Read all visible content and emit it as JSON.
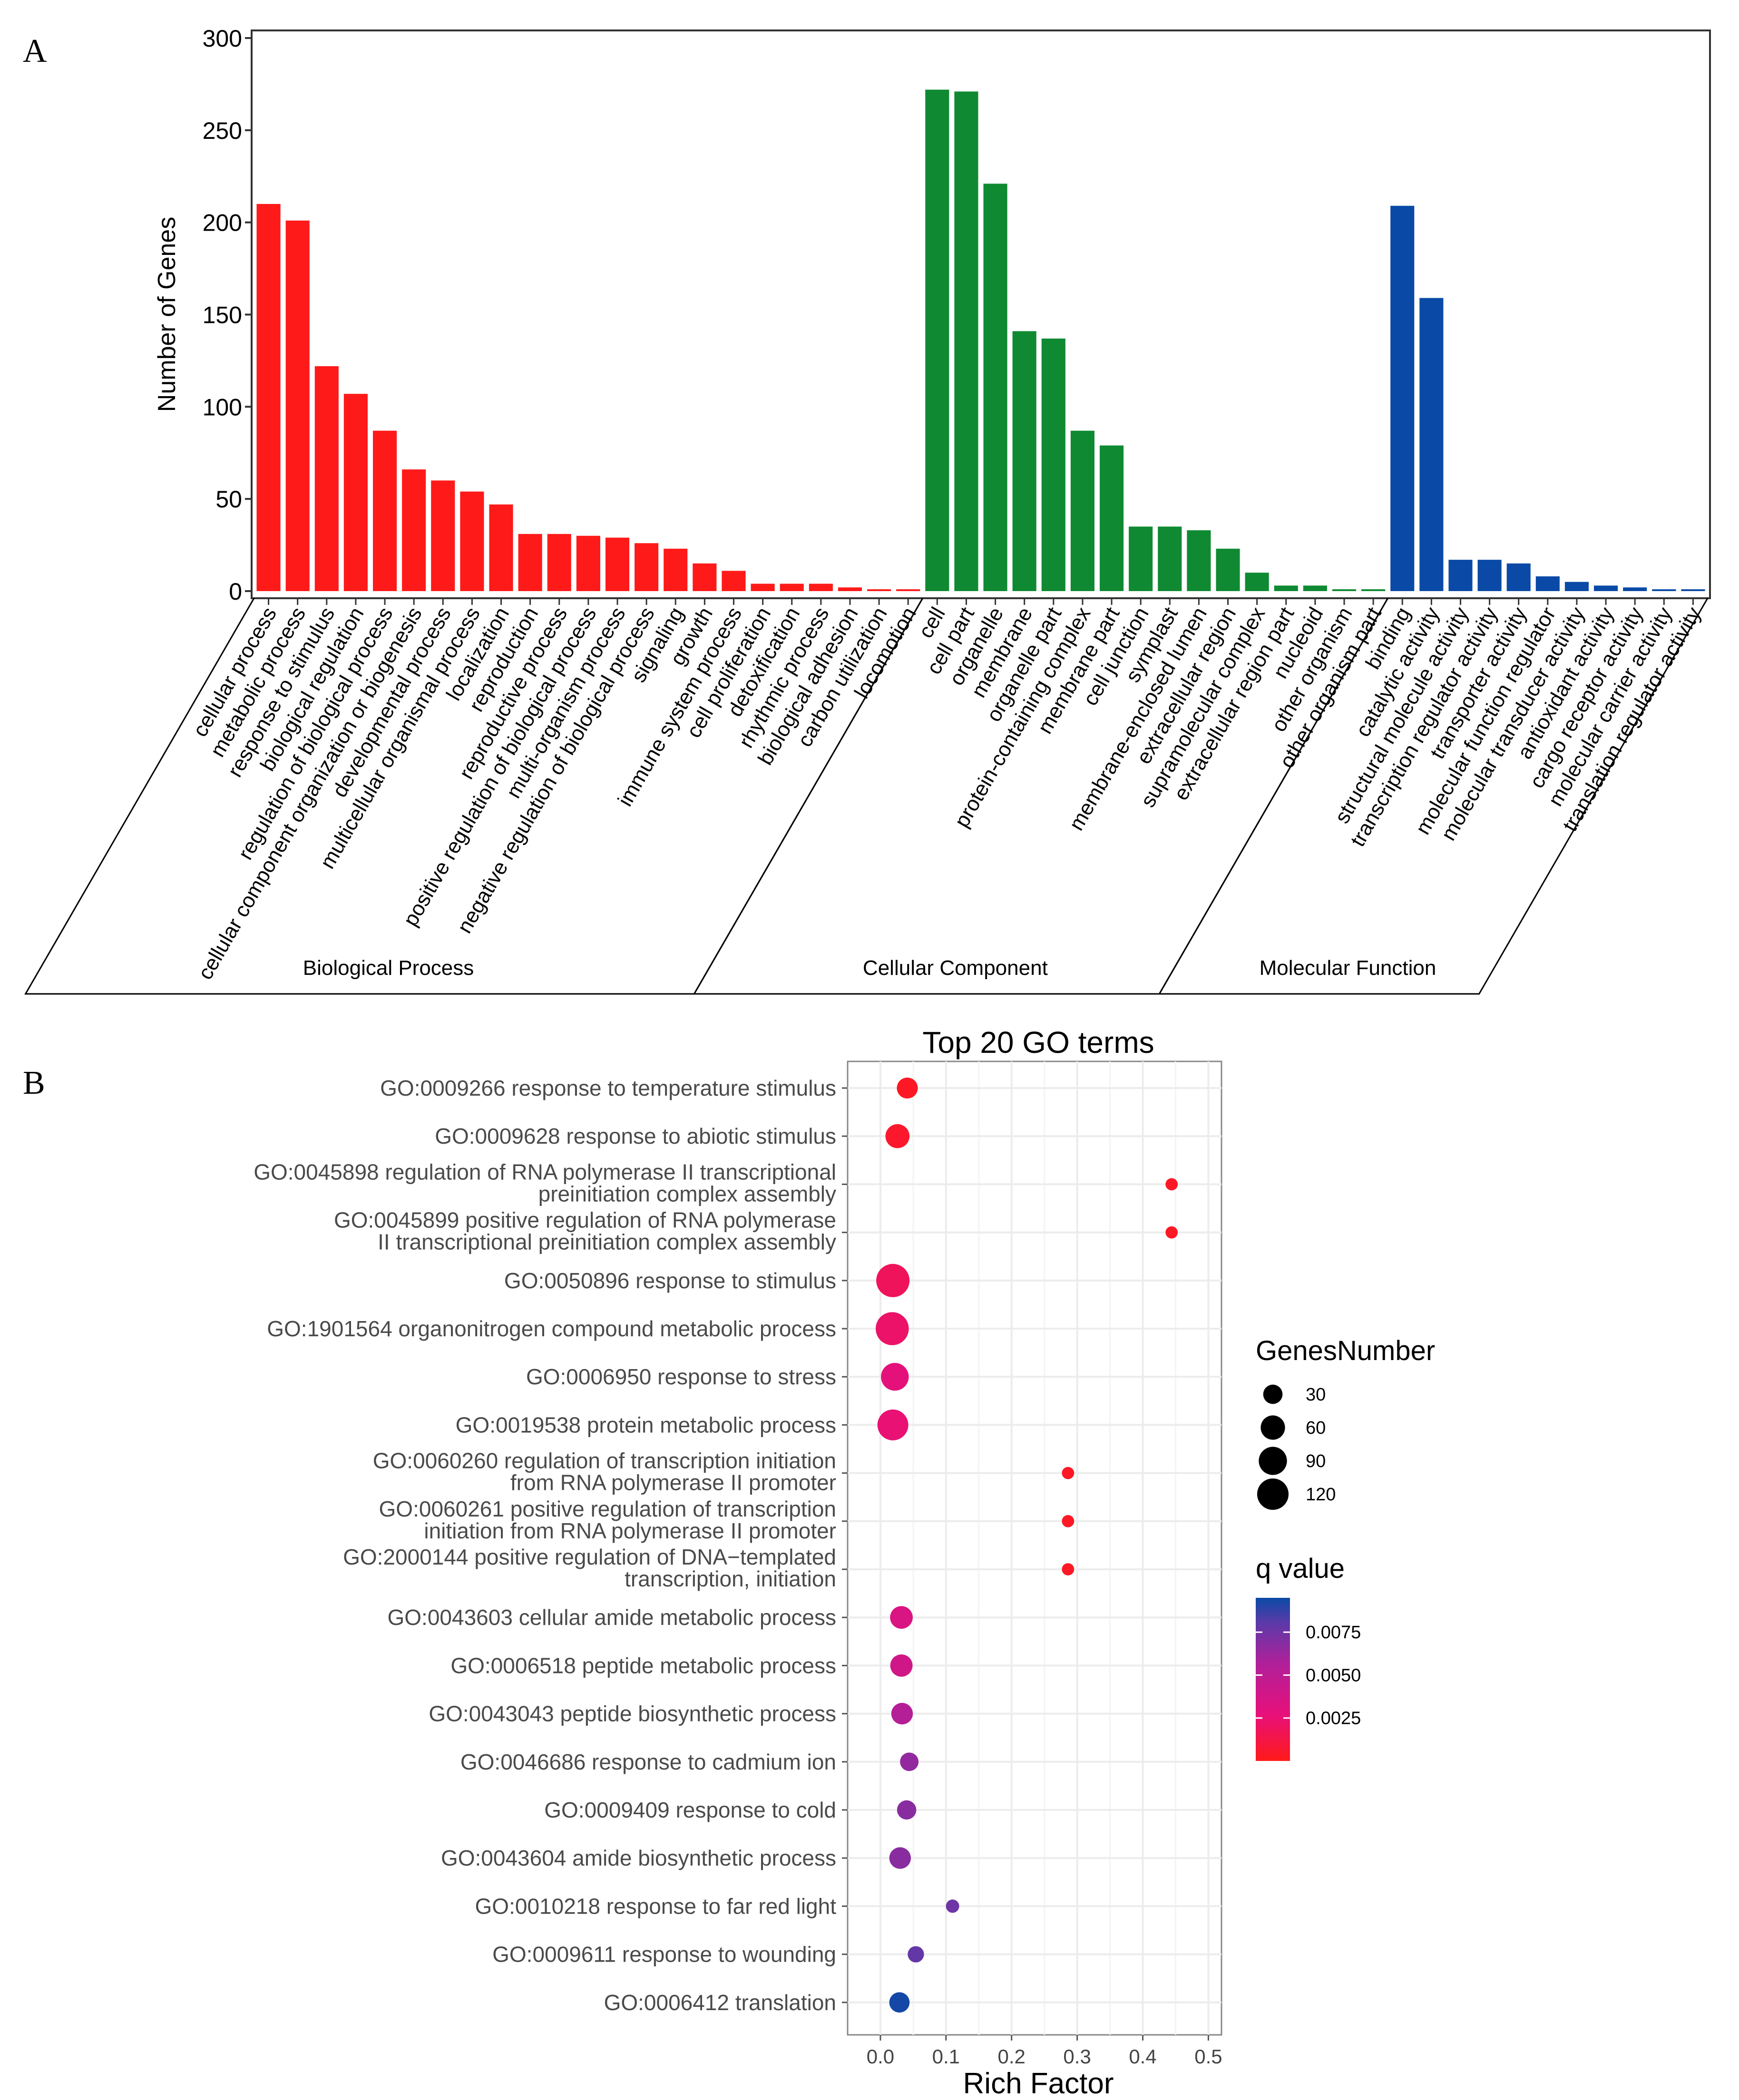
{
  "chart_data": [
    {
      "type": "bar",
      "panel_label": "A",
      "ylabel": "Number of Genes",
      "ylim": [
        0,
        300
      ],
      "yticks": [
        0,
        50,
        100,
        150,
        200,
        250,
        300
      ],
      "grid": false,
      "groups": [
        {
          "name": "Biological Process",
          "color": "#ff1a1a",
          "categories": [
            "cellular process",
            "metabolic process",
            "response to stimulus",
            "biological regulation",
            "regulation of biological process",
            "cellular component organization or biogenesis",
            "developmental process",
            "multicellular organismal process",
            "localization",
            "reproduction",
            "reproductive process",
            "positive regulation of biological process",
            "multi-organism process",
            "negative regulation of biological process",
            "signaling",
            "growth",
            "immune system process",
            "cell proliferation",
            "detoxification",
            "rhythmic process",
            "biological adhesion",
            "carbon utilization",
            "locomotion"
          ],
          "values": [
            210,
            201,
            122,
            107,
            87,
            66,
            60,
            54,
            47,
            31,
            31,
            30,
            29,
            26,
            23,
            15,
            11,
            4,
            4,
            4,
            2,
            1,
            1
          ]
        },
        {
          "name": "Cellular Component",
          "color": "#0f8a32",
          "categories": [
            "cell",
            "cell part",
            "organelle",
            "membrane",
            "organelle part",
            "protein-containing complex",
            "membrane part",
            "cell junction",
            "symplast",
            "membrane-enclosed lumen",
            "extracellular region",
            "supramolecular complex",
            "extracellular region part",
            "nucleoid",
            "other organism",
            "other organism part"
          ],
          "values": [
            272,
            271,
            221,
            141,
            137,
            87,
            79,
            35,
            35,
            33,
            23,
            10,
            3,
            3,
            1,
            1
          ]
        },
        {
          "name": "Molecular Function",
          "color": "#0a4aa6",
          "categories": [
            "binding",
            "catalytic activity",
            "structural molecule activity",
            "transcription regulator activity",
            "transporter activity",
            "molecular function regulator",
            "molecular transducer activity",
            "antioxidant activity",
            "cargo receptor activity",
            "molecular carrier activity",
            "translation regulator activity"
          ],
          "values": [
            209,
            159,
            17,
            17,
            15,
            8,
            5,
            3,
            2,
            1,
            1
          ]
        }
      ]
    },
    {
      "type": "scatter",
      "panel_label": "B",
      "title": "Top 20 GO terms",
      "xlabel": "Rich Factor",
      "xlim": [
        -0.05,
        0.52
      ],
      "xticks": [
        0.0,
        0.1,
        0.2,
        0.3,
        0.4,
        0.5
      ],
      "xtick_labels": [
        "0.0",
        "0.1",
        "0.2",
        "0.3",
        "0.4",
        "0.5"
      ],
      "grid": true,
      "size_legend": {
        "title": "GenesNumber",
        "values": [
          30,
          60,
          90,
          120
        ],
        "labels": [
          "30",
          "60",
          "90",
          "120"
        ]
      },
      "color_legend": {
        "title": "q value",
        "range": [
          0,
          0.0095
        ],
        "ticks": [
          0.0025,
          0.005,
          0.0075
        ],
        "tick_labels": [
          "0.0025",
          "0.0050",
          "0.0075"
        ],
        "low_color": "#ff1a1a",
        "mid_color": "#e8107a",
        "high_color": "#0a4aa6"
      },
      "points": [
        {
          "label": [
            "GO:0009266 response to temperature stimulus"
          ],
          "x": 0.041,
          "genes": 33,
          "q": 0.0003
        },
        {
          "label": [
            "GO:0009628 response to abiotic stimulus"
          ],
          "x": 0.026,
          "genes": 50,
          "q": 0.0005
        },
        {
          "label": [
            "GO:0045898 regulation of RNA polymerase II transcriptional",
            "preinitiation complex assembly"
          ],
          "x": 0.444,
          "genes": 4,
          "q": 0.0003
        },
        {
          "label": [
            "GO:0045899 positive regulation of RNA polymerase",
            "II transcriptional preinitiation complex assembly"
          ],
          "x": 0.444,
          "genes": 4,
          "q": 0.0003
        },
        {
          "label": [
            "GO:0050896 response to stimulus"
          ],
          "x": 0.019,
          "genes": 122,
          "q": 0.0018
        },
        {
          "label": [
            "GO:1901564 organonitrogen compound metabolic process"
          ],
          "x": 0.018,
          "genes": 120,
          "q": 0.0022
        },
        {
          "label": [
            "GO:0006950 response to stress"
          ],
          "x": 0.022,
          "genes": 75,
          "q": 0.0028
        },
        {
          "label": [
            "GO:0019538 protein metabolic process"
          ],
          "x": 0.019,
          "genes": 100,
          "q": 0.0025
        },
        {
          "label": [
            "GO:0060260 regulation of transcription initiation",
            "from RNA polymerase II promoter"
          ],
          "x": 0.286,
          "genes": 4,
          "q": 0.0003
        },
        {
          "label": [
            "GO:0060261 positive regulation of transcription",
            "initiation from RNA polymerase II promoter"
          ],
          "x": 0.286,
          "genes": 4,
          "q": 0.0003
        },
        {
          "label": [
            "GO:2000144 positive regulation of DNA−templated",
            "transcription, initiation"
          ],
          "x": 0.286,
          "genes": 4,
          "q": 0.0003
        },
        {
          "label": [
            "GO:0043603 cellular amide metabolic process"
          ],
          "x": 0.032,
          "genes": 42,
          "q": 0.0035
        },
        {
          "label": [
            "GO:0006518 peptide metabolic process"
          ],
          "x": 0.032,
          "genes": 40,
          "q": 0.004
        },
        {
          "label": [
            "GO:0043043 peptide biosynthetic process"
          ],
          "x": 0.033,
          "genes": 36,
          "q": 0.0055
        },
        {
          "label": [
            "GO:0046686 response to cadmium ion"
          ],
          "x": 0.044,
          "genes": 22,
          "q": 0.0065
        },
        {
          "label": [
            "GO:0009409 response to cold"
          ],
          "x": 0.04,
          "genes": 25,
          "q": 0.0068
        },
        {
          "label": [
            "GO:0043604 amide biosynthetic process"
          ],
          "x": 0.03,
          "genes": 36,
          "q": 0.0068
        },
        {
          "label": [
            "GO:0010218 response to far red light"
          ],
          "x": 0.11,
          "genes": 6,
          "q": 0.0075
        },
        {
          "label": [
            "GO:0009611 response to wounding"
          ],
          "x": 0.054,
          "genes": 14,
          "q": 0.0078
        },
        {
          "label": [
            "GO:0006412 translation"
          ],
          "x": 0.029,
          "genes": 30,
          "q": 0.0093
        }
      ]
    }
  ]
}
